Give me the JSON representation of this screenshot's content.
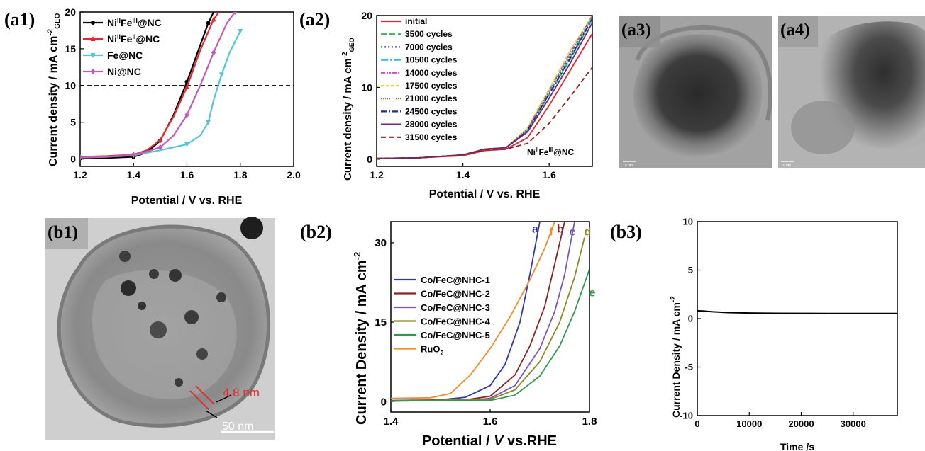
{
  "panels": {
    "a1": {
      "tag": "(a1)",
      "chart_data": {
        "type": "line",
        "xlabel": "Potential / V vs. RHE",
        "ylabel": "Current density / mA cm",
        "ylabel_sup": "-2",
        "ylabel_sub": "GEO",
        "xlim": [
          1.2,
          2.0
        ],
        "ylim": [
          -1,
          20
        ],
        "xticks": [
          "1.2",
          "1.4",
          "1.6",
          "1.8",
          "2.0"
        ],
        "yticks": [
          "0",
          "5",
          "10",
          "15",
          "20"
        ],
        "reference_line": {
          "y": 10,
          "style": "dashed"
        },
        "legend_position": "top-left",
        "series": [
          {
            "name": "NiIIFeIII@NC",
            "legend_main": "Ni",
            "legend_sup1": "II",
            "legend_mid": "Fe",
            "legend_sup2": "III",
            "legend_end": "@NC",
            "color": "#000000",
            "marker": "circle",
            "x": [
              1.2,
              1.3,
              1.4,
              1.45,
              1.5,
              1.55,
              1.6,
              1.65,
              1.68,
              1.7
            ],
            "y": [
              0.1,
              0.15,
              0.3,
              0.9,
              2.5,
              6.0,
              10.5,
              15.5,
              18.5,
              20.0
            ]
          },
          {
            "name": "NiIIFeII@NC",
            "legend_main": "Ni",
            "legend_sup1": "II",
            "legend_mid": "Fe",
            "legend_sup2": "II",
            "legend_end": "@NC",
            "color": "#e8262b",
            "marker": "triangle",
            "x": [
              1.2,
              1.3,
              1.4,
              1.45,
              1.5,
              1.55,
              1.6,
              1.65,
              1.7,
              1.72
            ],
            "y": [
              0.3,
              0.4,
              0.6,
              1.2,
              2.6,
              5.8,
              9.8,
              14.8,
              19.0,
              20.0
            ]
          },
          {
            "name": "Fe@NC",
            "legend_main": "Fe@NC",
            "color": "#55c5d8",
            "marker": "triangle-down",
            "x": [
              1.2,
              1.3,
              1.4,
              1.5,
              1.6,
              1.65,
              1.68,
              1.7,
              1.73,
              1.76,
              1.8
            ],
            "y": [
              0.2,
              0.3,
              0.5,
              1.2,
              2.0,
              3.2,
              5.0,
              8.0,
              11.5,
              14.5,
              17.4
            ]
          },
          {
            "name": "Ni@NC",
            "legend_main": "Ni@NC",
            "color": "#c45ab3",
            "marker": "diamond",
            "x": [
              1.2,
              1.3,
              1.4,
              1.45,
              1.5,
              1.55,
              1.6,
              1.65,
              1.7,
              1.75,
              1.78
            ],
            "y": [
              0.2,
              0.3,
              0.6,
              1.0,
              1.6,
              3.2,
              6.0,
              10.0,
              14.5,
              18.5,
              20.0
            ]
          }
        ]
      }
    },
    "a2": {
      "tag": "(a2)",
      "annotation": {
        "main": "Ni",
        "sup1": "II",
        "mid": "Fe",
        "sup2": "III",
        "end": "@NC"
      },
      "chart_data": {
        "type": "line",
        "xlabel": "Potential / V vs. RHE",
        "ylabel": "Current density / mA cm",
        "ylabel_sup": "-2",
        "ylabel_sub": "GEO",
        "xlim": [
          1.2,
          1.7
        ],
        "ylim": [
          -1,
          20
        ],
        "xticks": [
          "1.2",
          "1.4",
          "1.6"
        ],
        "yticks": [
          "0",
          "10",
          "20"
        ],
        "legend_position": "top-left",
        "series": [
          {
            "name": "initial",
            "color": "#e8262b",
            "dash": "",
            "x": [
              1.2,
              1.3,
              1.4,
              1.45,
              1.5,
              1.55,
              1.6,
              1.65,
              1.7
            ],
            "y": [
              0.1,
              0.2,
              0.5,
              1.2,
              1.4,
              3.0,
              7.5,
              12.5,
              17.5
            ]
          },
          {
            "name": "3500 cycles",
            "color": "#3bb34a",
            "dash": "8 4",
            "x": [
              1.2,
              1.3,
              1.4,
              1.45,
              1.5,
              1.55,
              1.6,
              1.65,
              1.7
            ],
            "y": [
              0.1,
              0.2,
              0.6,
              1.4,
              1.6,
              4.0,
              9.0,
              14.0,
              19.5
            ]
          },
          {
            "name": "7000 cycles",
            "color": "#3846c4",
            "dash": "2 3",
            "x": [
              1.2,
              1.3,
              1.4,
              1.45,
              1.5,
              1.55,
              1.6,
              1.65,
              1.7
            ],
            "y": [
              0.1,
              0.2,
              0.6,
              1.4,
              1.6,
              4.2,
              9.4,
              14.6,
              20.0
            ]
          },
          {
            "name": "10500 cycles",
            "color": "#2cc0d0",
            "dash": "10 3 2 3",
            "x": [
              1.2,
              1.3,
              1.4,
              1.45,
              1.5,
              1.55,
              1.6,
              1.65,
              1.7
            ],
            "y": [
              0.1,
              0.2,
              0.6,
              1.4,
              1.6,
              4.1,
              9.2,
              14.3,
              19.8
            ]
          },
          {
            "name": "14000 cycles",
            "color": "#d04ec0",
            "dash": "6 2 2 2 2 2",
            "x": [
              1.2,
              1.3,
              1.4,
              1.45,
              1.5,
              1.55,
              1.6,
              1.65,
              1.7
            ],
            "y": [
              0.1,
              0.2,
              0.6,
              1.4,
              1.6,
              4.3,
              9.6,
              15.0,
              20.0
            ]
          },
          {
            "name": "17500 cycles",
            "color": "#eed62a",
            "dash": "4 3",
            "x": [
              1.2,
              1.3,
              1.4,
              1.45,
              1.5,
              1.55,
              1.6,
              1.65,
              1.7
            ],
            "y": [
              0.1,
              0.2,
              0.6,
              1.4,
              1.6,
              4.4,
              9.8,
              15.3,
              20.0
            ]
          },
          {
            "name": "21000 cycles",
            "color": "#6f8a1f",
            "dash": "1 2",
            "x": [
              1.2,
              1.3,
              1.4,
              1.45,
              1.5,
              1.55,
              1.6,
              1.65,
              1.7
            ],
            "y": [
              0.1,
              0.2,
              0.6,
              1.4,
              1.6,
              4.2,
              9.5,
              14.8,
              20.0
            ]
          },
          {
            "name": "24500 cycles",
            "color": "#1f2a8c",
            "dash": "8 3 2 3",
            "x": [
              1.2,
              1.3,
              1.4,
              1.45,
              1.5,
              1.55,
              1.6,
              1.65,
              1.7
            ],
            "y": [
              0.1,
              0.2,
              0.6,
              1.4,
              1.6,
              4.0,
              9.1,
              14.2,
              19.6
            ]
          },
          {
            "name": "28000 cycles",
            "color": "#6a2a8a",
            "dash": "",
            "x": [
              1.2,
              1.3,
              1.4,
              1.45,
              1.5,
              1.55,
              1.6,
              1.65,
              1.7
            ],
            "y": [
              0.1,
              0.2,
              0.6,
              1.4,
              1.6,
              3.8,
              8.5,
              13.5,
              19.0
            ]
          },
          {
            "name": "31500 cycles",
            "color": "#8a2323",
            "dash": "7 4",
            "x": [
              1.2,
              1.3,
              1.4,
              1.45,
              1.5,
              1.55,
              1.6,
              1.65,
              1.7
            ],
            "y": [
              0.1,
              0.2,
              0.6,
              1.3,
              1.4,
              2.2,
              5.0,
              8.8,
              12.8
            ]
          }
        ]
      }
    },
    "a3": {
      "tag": "(a3)",
      "scale": "10 nm"
    },
    "a4": {
      "tag": "(a4)",
      "scale": "10 nm"
    },
    "b1": {
      "tag": "(b1)",
      "thickness": "4.8 nm",
      "scale": "50 nm"
    },
    "b2": {
      "tag": "(b2)",
      "chart_data": {
        "type": "line",
        "xlabel_pre": "Potential / ",
        "xlabel_var": "V",
        "xlabel_post": " vs.RHE",
        "ylabel": "Current Density / mA cm",
        "ylabel_sup": "-2",
        "xlim": [
          1.4,
          1.8
        ],
        "ylim": [
          -2,
          34
        ],
        "xticks": [
          "1.4",
          "1.6",
          "1.8"
        ],
        "yticks": [
          "0",
          "15",
          "30"
        ],
        "legend_position": "left",
        "series": [
          {
            "name": "Co/FeC@NHC-1",
            "letter": "a",
            "color": "#2f3aa8",
            "x": [
              1.4,
              1.5,
              1.55,
              1.6,
              1.63,
              1.66,
              1.68,
              1.7
            ],
            "y": [
              0.2,
              0.3,
              0.8,
              3.0,
              7.0,
              15.0,
              24.0,
              34.0
            ]
          },
          {
            "name": "Co/FeC@NHC-2",
            "letter": "b",
            "color": "#8c2323",
            "x": [
              1.4,
              1.55,
              1.6,
              1.65,
              1.68,
              1.71,
              1.73,
              1.75
            ],
            "y": [
              0.1,
              0.3,
              1.0,
              5.0,
              10.5,
              18.0,
              26.0,
              34.0
            ]
          },
          {
            "name": "Co/FeC@NHC-3",
            "letter": "c",
            "color": "#7b56b8",
            "x": [
              1.4,
              1.55,
              1.6,
              1.65,
              1.7,
              1.73,
              1.75,
              1.77
            ],
            "y": [
              0.1,
              0.2,
              0.6,
              3.0,
              10.0,
              17.0,
              24.0,
              34.0
            ]
          },
          {
            "name": "Co/FeC@NHC-4",
            "letter": "d",
            "color": "#8a8a2a",
            "x": [
              1.4,
              1.6,
              1.65,
              1.7,
              1.74,
              1.77,
              1.79
            ],
            "y": [
              0.1,
              0.4,
              2.2,
              7.5,
              15.0,
              23.5,
              31.0
            ]
          },
          {
            "name": "Co/FeC@NHC-5",
            "letter": "e",
            "color": "#2c9a4a",
            "x": [
              1.4,
              1.6,
              1.65,
              1.7,
              1.74,
              1.77,
              1.8
            ],
            "y": [
              0.1,
              0.2,
              1.2,
              4.8,
              10.5,
              17.0,
              25.0
            ]
          },
          {
            "name": "RuO2",
            "name_main": "RuO",
            "name_sub": "2",
            "letter": "f",
            "color": "#f08c2a",
            "x": [
              1.4,
              1.48,
              1.52,
              1.56,
              1.6,
              1.64,
              1.68,
              1.71,
              1.73
            ],
            "y": [
              0.6,
              0.7,
              1.5,
              5.0,
              10.0,
              16.0,
              23.0,
              29.0,
              34.0
            ]
          }
        ]
      }
    },
    "b3": {
      "tag": "(b3)",
      "chart_data": {
        "type": "line",
        "xlabel": "Time /s",
        "ylabel": "Current Density / mA cm",
        "ylabel_sup": "-2",
        "xlim": [
          0,
          38500
        ],
        "ylim": [
          -10,
          10
        ],
        "xticks": [
          "0",
          "10000",
          "20000",
          "30000"
        ],
        "yticks": [
          "-10",
          "-5",
          "0",
          "5",
          "10"
        ],
        "series": [
          {
            "name": "",
            "color": "#000000",
            "x": [
              0,
              1000,
              3000,
              6000,
              10000,
              15000,
              20000,
              25000,
              30000,
              35000,
              38500
            ],
            "y": [
              0.8,
              0.78,
              0.7,
              0.62,
              0.58,
              0.55,
              0.54,
              0.53,
              0.53,
              0.53,
              0.53
            ]
          }
        ]
      }
    }
  }
}
